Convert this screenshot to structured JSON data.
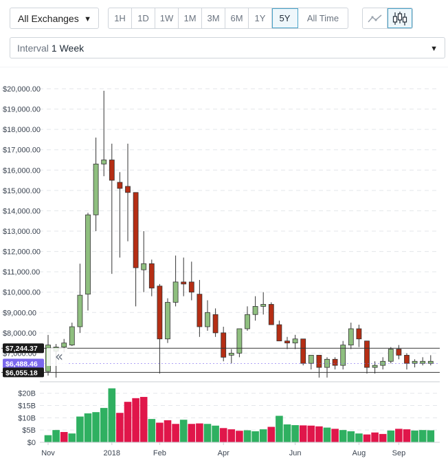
{
  "toolbar": {
    "exchange": "All Exchanges",
    "ranges": [
      "1H",
      "1D",
      "1W",
      "1M",
      "3M",
      "6M",
      "1Y",
      "5Y",
      "All Time"
    ],
    "active_range": "5Y",
    "chart_types": [
      "line-chart-icon",
      "candlestick-icon"
    ],
    "active_chart_type": "candlestick-icon"
  },
  "interval": {
    "label": "Interval",
    "value": "1 Week"
  },
  "markers": {
    "high": "$7,244.37",
    "last": "$6,488.46",
    "low": "$6,055.18"
  },
  "colors": {
    "up": "#8fbf7f",
    "down": "#b52e14",
    "vol_up": "#2fb061",
    "vol_down": "#e0164a",
    "last_tag": "#7b68ee"
  },
  "chart_data": [
    {
      "type": "candlestick",
      "ylim": [
        6000,
        20000
      ],
      "y_ticks": [
        "$20,000.00",
        "$19,000.00",
        "$18,000.00",
        "$17,000.00",
        "$16,000.00",
        "$15,000.00",
        "$14,000.00",
        "$13,000.00",
        "$12,000.00",
        "$11,000.00",
        "$10,000.00",
        "$9,000.00",
        "$8,000.00",
        "$7,000.00"
      ],
      "y_tick_values": [
        20000,
        19000,
        18000,
        17000,
        16000,
        15000,
        14000,
        13000,
        12000,
        11000,
        10000,
        9000,
        8000,
        7000
      ],
      "x_ticks": [
        "Nov",
        "2018",
        "Feb",
        "Apr",
        "Jun",
        "Aug",
        "Sep"
      ],
      "x_tick_index": [
        0,
        8,
        14,
        22,
        31,
        39,
        44
      ],
      "reference_lines": [
        7244.37,
        6055.18
      ],
      "candles": [
        {
          "o": 6100,
          "h": 7900,
          "l": 5900,
          "c": 7400
        },
        {
          "o": 7100,
          "h": 7450,
          "l": 5800,
          "c": 7300
        },
        {
          "o": 7300,
          "h": 7700,
          "l": 7050,
          "c": 7500
        },
        {
          "o": 7400,
          "h": 8500,
          "l": 7350,
          "c": 8300
        },
        {
          "o": 8300,
          "h": 11400,
          "l": 8000,
          "c": 9850
        },
        {
          "o": 9900,
          "h": 13900,
          "l": 9100,
          "c": 13800
        },
        {
          "o": 13800,
          "h": 17600,
          "l": 13000,
          "c": 16300
        },
        {
          "o": 16300,
          "h": 19900,
          "l": 15700,
          "c": 16500
        },
        {
          "o": 16500,
          "h": 17300,
          "l": 10900,
          "c": 15500
        },
        {
          "o": 15400,
          "h": 15900,
          "l": 11700,
          "c": 15100
        },
        {
          "o": 15200,
          "h": 17300,
          "l": 12500,
          "c": 14900
        },
        {
          "o": 14900,
          "h": 14900,
          "l": 9300,
          "c": 11200
        },
        {
          "o": 11100,
          "h": 13000,
          "l": 10000,
          "c": 11400
        },
        {
          "o": 11400,
          "h": 11600,
          "l": 9800,
          "c": 10200
        },
        {
          "o": 10300,
          "h": 10400,
          "l": 6000,
          "c": 7700
        },
        {
          "o": 7700,
          "h": 9700,
          "l": 7500,
          "c": 9500
        },
        {
          "o": 9500,
          "h": 11800,
          "l": 9300,
          "c": 10500
        },
        {
          "o": 10500,
          "h": 11700,
          "l": 9800,
          "c": 10400
        },
        {
          "o": 10500,
          "h": 11500,
          "l": 9600,
          "c": 10000
        },
        {
          "o": 9900,
          "h": 10600,
          "l": 7800,
          "c": 8300
        },
        {
          "o": 8300,
          "h": 9600,
          "l": 8100,
          "c": 9000
        },
        {
          "o": 8900,
          "h": 9200,
          "l": 7800,
          "c": 8000
        },
        {
          "o": 8000,
          "h": 8300,
          "l": 6600,
          "c": 6800
        },
        {
          "o": 6900,
          "h": 7200,
          "l": 6500,
          "c": 7000
        },
        {
          "o": 7000,
          "h": 8200,
          "l": 6800,
          "c": 8200
        },
        {
          "o": 8200,
          "h": 9300,
          "l": 8100,
          "c": 8900
        },
        {
          "o": 8900,
          "h": 9800,
          "l": 8600,
          "c": 9300
        },
        {
          "o": 9300,
          "h": 10000,
          "l": 8900,
          "c": 9400
        },
        {
          "o": 9400,
          "h": 9500,
          "l": 8400,
          "c": 8400
        },
        {
          "o": 8400,
          "h": 8600,
          "l": 7600,
          "c": 7600
        },
        {
          "o": 7600,
          "h": 7800,
          "l": 7200,
          "c": 7500
        },
        {
          "o": 7500,
          "h": 7900,
          "l": 7200,
          "c": 7700
        },
        {
          "o": 7700,
          "h": 7700,
          "l": 6400,
          "c": 6500
        },
        {
          "o": 6500,
          "h": 6800,
          "l": 6200,
          "c": 6900
        },
        {
          "o": 6900,
          "h": 6900,
          "l": 5800,
          "c": 6300
        },
        {
          "o": 6300,
          "h": 6800,
          "l": 5800,
          "c": 6700
        },
        {
          "o": 6700,
          "h": 6800,
          "l": 6200,
          "c": 6400
        },
        {
          "o": 6400,
          "h": 7600,
          "l": 6200,
          "c": 7400
        },
        {
          "o": 7400,
          "h": 8500,
          "l": 7200,
          "c": 8200
        },
        {
          "o": 8200,
          "h": 8400,
          "l": 7300,
          "c": 7700
        },
        {
          "o": 7600,
          "h": 7600,
          "l": 6000,
          "c": 6300
        },
        {
          "o": 6300,
          "h": 6600,
          "l": 6000,
          "c": 6400
        },
        {
          "o": 6400,
          "h": 6800,
          "l": 6200,
          "c": 6600
        },
        {
          "o": 6600,
          "h": 7300,
          "l": 6500,
          "c": 7200
        },
        {
          "o": 7200,
          "h": 7400,
          "l": 6700,
          "c": 6900
        },
        {
          "o": 6900,
          "h": 7000,
          "l": 6200,
          "c": 6500
        },
        {
          "o": 6500,
          "h": 6700,
          "l": 6300,
          "c": 6600
        },
        {
          "o": 6500,
          "h": 6800,
          "l": 6400,
          "c": 6600
        },
        {
          "o": 6500,
          "h": 6900,
          "l": 6400,
          "c": 6600
        }
      ]
    },
    {
      "type": "bar",
      "ylim": [
        0,
        23
      ],
      "y_ticks": [
        "$20B",
        "$15B",
        "$10B",
        "$5B",
        "$0"
      ],
      "y_tick_values": [
        20,
        15,
        10,
        5,
        0
      ],
      "values": [
        2.9,
        5.0,
        4.2,
        3.6,
        10.5,
        11.8,
        12.3,
        14.0,
        22.0,
        12.0,
        16.5,
        18.0,
        18.5,
        9.5,
        8.0,
        9.0,
        7.5,
        9.2,
        7.5,
        7.7,
        7.5,
        6.8,
        5.8,
        5.3,
        4.7,
        4.9,
        4.5,
        5.3,
        6.3,
        10.8,
        7.3,
        7.0,
        6.9,
        6.8,
        6.5,
        6.0,
        5.5,
        5.0,
        4.5,
        3.6,
        3.2,
        4.0,
        3.4,
        4.8,
        5.5,
        5.3,
        4.8,
        5.0,
        4.9
      ],
      "directions": [
        "up",
        "up",
        "down",
        "up",
        "up",
        "up",
        "up",
        "up",
        "up",
        "down",
        "down",
        "down",
        "down",
        "up",
        "down",
        "down",
        "down",
        "up",
        "down",
        "down",
        "up",
        "up",
        "down",
        "down",
        "down",
        "up",
        "up",
        "up",
        "down",
        "up",
        "up",
        "up",
        "down",
        "down",
        "down",
        "up",
        "down",
        "up",
        "up",
        "up",
        "down",
        "down",
        "down",
        "up",
        "down",
        "down",
        "up",
        "up",
        "up"
      ]
    }
  ]
}
